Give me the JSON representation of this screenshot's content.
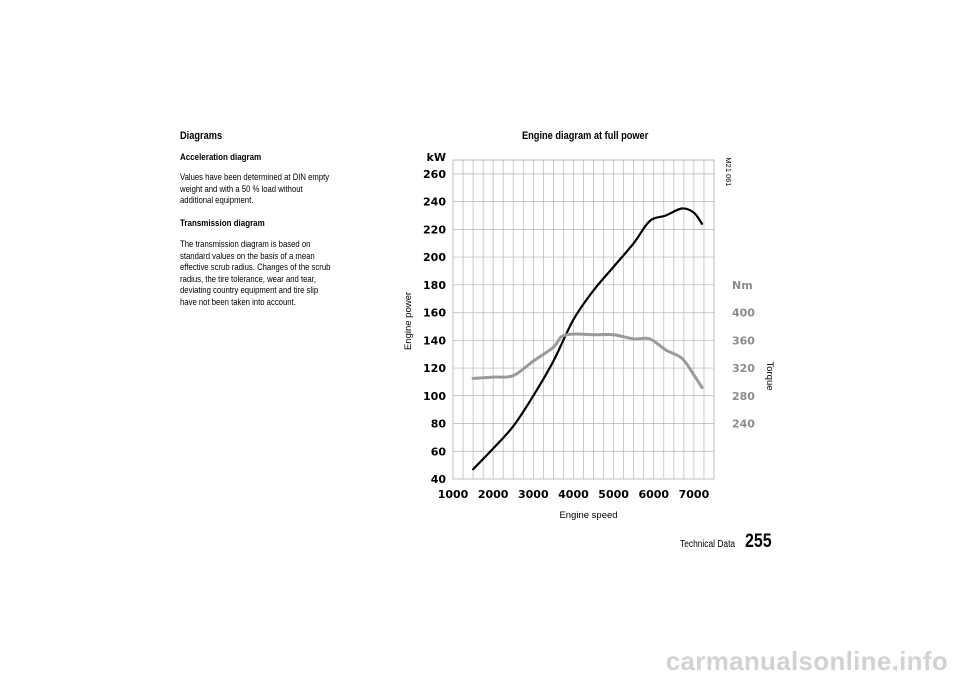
{
  "left": {
    "section_title": "Diagrams",
    "accel_heading": "Acceleration diagram",
    "accel_lines": [
      "Values have been determined at DIN empty",
      "weight and with a 50 % load without",
      "additional equipment."
    ],
    "trans_heading": "Transmission diagram",
    "trans_lines": [
      "The transmission diagram is based on",
      "standard values on the basis of a mean",
      "effective scrub radius. Changes of the scrub",
      "radius, the tire tolerance, wear and tear,",
      "deviating country equipment and tire slip",
      "have not been taken into account."
    ]
  },
  "chart_data": {
    "type": "line",
    "title": "Engine diagram at full power",
    "figure_code": "M21 061",
    "xlabel": "Engine speed",
    "ylabel": "Engine power",
    "y2label": "Torque",
    "y_unit": "kW",
    "y2_unit": "Nm",
    "x_ticks": [
      1000,
      2000,
      3000,
      4000,
      5000,
      6000,
      7000
    ],
    "y_ticks": [
      40,
      60,
      80,
      100,
      120,
      140,
      160,
      180,
      200,
      220,
      240,
      260
    ],
    "y2_ticks": [
      240,
      280,
      320,
      360,
      400
    ],
    "xlim": [
      1000,
      7500
    ],
    "ylim": [
      40,
      270
    ],
    "y2_map": {
      "kW_at_240Nm": 80,
      "kW_at_400Nm": 160
    },
    "grid": true,
    "series": [
      {
        "axis": "left",
        "color": "#000000",
        "points": [
          [
            1500,
            47
          ],
          [
            2000,
            62
          ],
          [
            2500,
            78
          ],
          [
            3000,
            100
          ],
          [
            3500,
            125
          ],
          [
            4000,
            155
          ],
          [
            4500,
            176
          ],
          [
            5000,
            193
          ],
          [
            5500,
            210
          ],
          [
            5900,
            226
          ],
          [
            6300,
            230
          ],
          [
            6700,
            235
          ],
          [
            7000,
            232
          ],
          [
            7200,
            224
          ]
        ]
      },
      {
        "axis": "right",
        "color": "#9a9a9a",
        "points": [
          [
            1500,
            305
          ],
          [
            2000,
            307
          ],
          [
            2500,
            309
          ],
          [
            3000,
            330
          ],
          [
            3500,
            350
          ],
          [
            3700,
            365
          ],
          [
            4000,
            369
          ],
          [
            4500,
            368
          ],
          [
            5000,
            368
          ],
          [
            5500,
            362
          ],
          [
            5900,
            362
          ],
          [
            6300,
            346
          ],
          [
            6700,
            334
          ],
          [
            7000,
            310
          ],
          [
            7200,
            292
          ]
        ]
      }
    ]
  },
  "footer": {
    "label": "Technical Data",
    "page_number": "255"
  },
  "watermark": "carmanualsonline.info"
}
